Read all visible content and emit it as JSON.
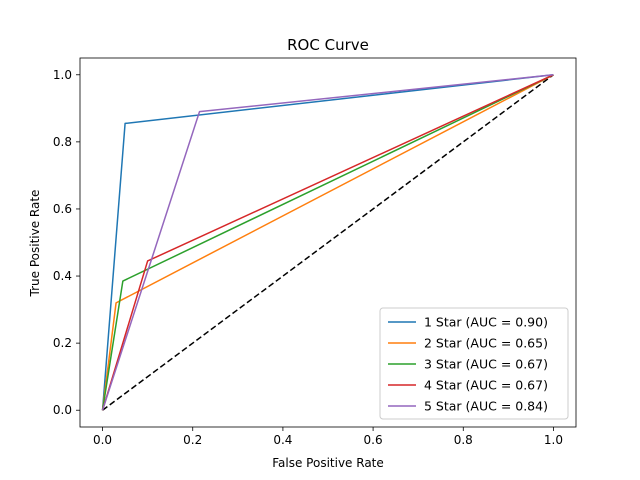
{
  "chart_data": {
    "type": "line",
    "title": "ROC Curve",
    "xlabel": "False Positive Rate",
    "ylabel": "True Positive Rate",
    "xlim": [
      -0.05,
      1.05
    ],
    "ylim": [
      -0.05,
      1.05
    ],
    "xticks": [
      0.0,
      0.2,
      0.4,
      0.6,
      0.8,
      1.0
    ],
    "yticks": [
      0.0,
      0.2,
      0.4,
      0.6,
      0.8,
      1.0
    ],
    "tick_labels": [
      "0.0",
      "0.2",
      "0.4",
      "0.6",
      "0.8",
      "1.0"
    ],
    "grid": false,
    "legend_position": "lower-right",
    "series": [
      {
        "name": "1 Star (AUC = 0.90)",
        "color": "#1f77b4",
        "x": [
          0.0,
          0.05,
          1.0
        ],
        "y": [
          0.0,
          0.855,
          1.0
        ]
      },
      {
        "name": "2 Star (AUC = 0.65)",
        "color": "#ff7f0e",
        "x": [
          0.0,
          0.03,
          1.0
        ],
        "y": [
          0.0,
          0.32,
          1.0
        ]
      },
      {
        "name": "3 Star (AUC = 0.67)",
        "color": "#2ca02c",
        "x": [
          0.0,
          0.045,
          1.0
        ],
        "y": [
          0.0,
          0.385,
          1.0
        ]
      },
      {
        "name": "4 Star (AUC = 0.67)",
        "color": "#d62728",
        "x": [
          0.0,
          0.1,
          1.0
        ],
        "y": [
          0.0,
          0.445,
          1.0
        ]
      },
      {
        "name": "5 Star (AUC = 0.84)",
        "color": "#9467bd",
        "x": [
          0.0,
          0.215,
          1.0
        ],
        "y": [
          0.0,
          0.89,
          1.0
        ]
      }
    ],
    "reference_line": {
      "color": "#000000",
      "style": "dashed",
      "x": [
        0.0,
        1.0
      ],
      "y": [
        0.0,
        1.0
      ]
    }
  }
}
